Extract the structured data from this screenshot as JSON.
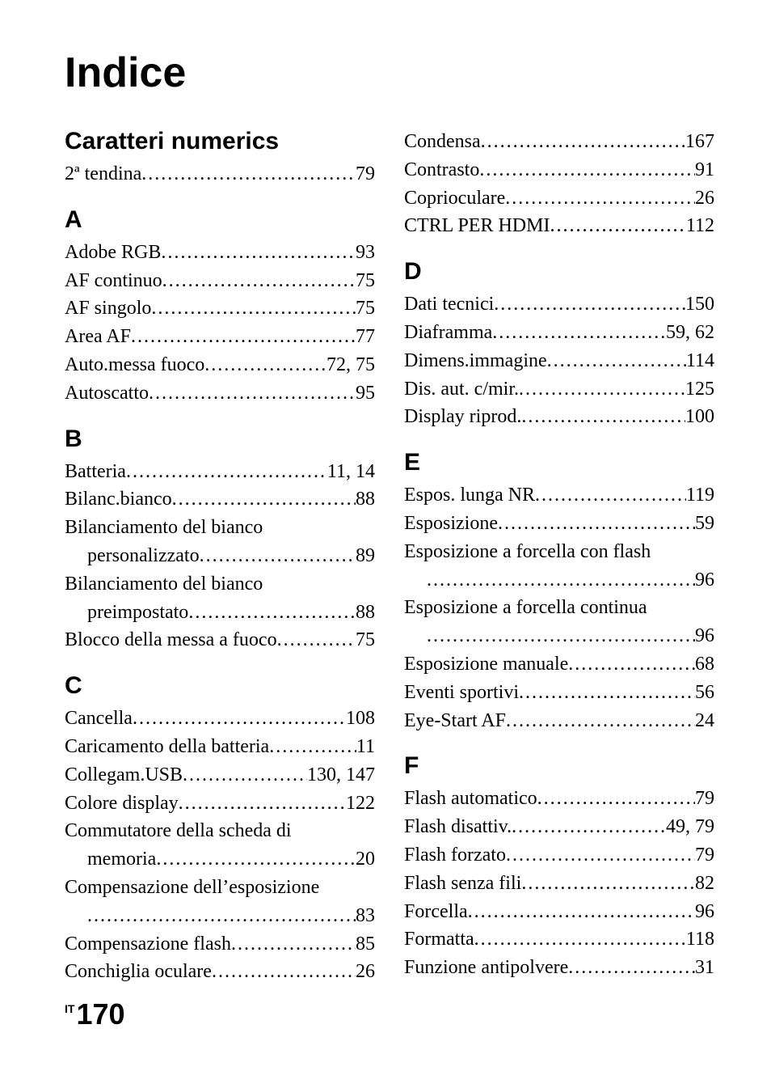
{
  "title": "Indice",
  "footer": {
    "lang": "IT",
    "page": "170"
  },
  "left": [
    {
      "type": "head",
      "text": "Caratteri numerics",
      "first": true
    },
    {
      "type": "entry",
      "label": "2ª tendina",
      "page": "79"
    },
    {
      "type": "head",
      "text": "A"
    },
    {
      "type": "entry",
      "label": "Adobe RGB",
      "page": "93"
    },
    {
      "type": "entry",
      "label": "AF continuo",
      "page": "75"
    },
    {
      "type": "entry",
      "label": "AF singolo",
      "page": "75"
    },
    {
      "type": "entry",
      "label": "Area AF",
      "page": "77"
    },
    {
      "type": "entry",
      "label": "Auto.messa fuoco",
      "page": "72, 75"
    },
    {
      "type": "entry",
      "label": "Autoscatto",
      "page": "95"
    },
    {
      "type": "head",
      "text": "B"
    },
    {
      "type": "entry",
      "label": "Batteria",
      "page": "11, 14"
    },
    {
      "type": "entry",
      "label": "Bilanc.bianco",
      "page": "88"
    },
    {
      "type": "wrap",
      "label": "Bilanciamento del bianco",
      "sub": "personalizzato",
      "page": "89"
    },
    {
      "type": "wrap",
      "label": "Bilanciamento del bianco",
      "sub": "preimpostato",
      "page": "88"
    },
    {
      "type": "entry",
      "label": "Blocco della messa a fuoco",
      "page": "75"
    },
    {
      "type": "head",
      "text": "C"
    },
    {
      "type": "entry",
      "label": "Cancella",
      "page": "108"
    },
    {
      "type": "entry",
      "label": "Caricamento della batteria",
      "page": "11"
    },
    {
      "type": "entry",
      "label": "Collegam.USB",
      "page": "130, 147"
    },
    {
      "type": "entry",
      "label": "Colore display",
      "page": "122"
    },
    {
      "type": "wrap",
      "label": "Commutatore della scheda di",
      "sub": "memoria",
      "page": "20"
    },
    {
      "type": "wrapblank",
      "label": "Compensazione dell’esposizione",
      "page": "83"
    },
    {
      "type": "entry",
      "label": "Compensazione flash",
      "page": "85"
    },
    {
      "type": "entry",
      "label": "Conchiglia oculare",
      "page": "26"
    }
  ],
  "right": [
    {
      "type": "entry",
      "label": "Condensa",
      "page": "167"
    },
    {
      "type": "entry",
      "label": "Contrasto",
      "page": "91"
    },
    {
      "type": "entry",
      "label": "Coprioculare",
      "page": "26"
    },
    {
      "type": "entry",
      "label": "CTRL PER HDMI",
      "page": "112"
    },
    {
      "type": "head",
      "text": "D"
    },
    {
      "type": "entry",
      "label": "Dati tecnici",
      "page": "150"
    },
    {
      "type": "entry",
      "label": "Diaframma",
      "page": "59, 62"
    },
    {
      "type": "entry",
      "label": "Dimens.immagine",
      "page": "114"
    },
    {
      "type": "entry",
      "label": "Dis. aut. c/mir.",
      "page": "125"
    },
    {
      "type": "entry",
      "label": "Display riprod.",
      "page": "100"
    },
    {
      "type": "head",
      "text": "E"
    },
    {
      "type": "entry",
      "label": "Espos. lunga NR",
      "page": "119"
    },
    {
      "type": "entry",
      "label": "Esposizione",
      "page": "59"
    },
    {
      "type": "wrapblank",
      "label": "Esposizione a forcella con flash",
      "page": "96"
    },
    {
      "type": "wrapblank",
      "label": "Esposizione a forcella continua",
      "page": "96"
    },
    {
      "type": "entry",
      "label": "Esposizione manuale",
      "page": "68"
    },
    {
      "type": "entry",
      "label": "Eventi sportivi",
      "page": "56"
    },
    {
      "type": "entry",
      "label": "Eye-Start AF",
      "page": "24"
    },
    {
      "type": "head",
      "text": "F"
    },
    {
      "type": "entry",
      "label": "Flash automatico",
      "page": "79"
    },
    {
      "type": "entry",
      "label": "Flash disattiv.",
      "page": "49, 79"
    },
    {
      "type": "entry",
      "label": "Flash forzato",
      "page": "79"
    },
    {
      "type": "entry",
      "label": "Flash senza fili",
      "page": "82"
    },
    {
      "type": "entry",
      "label": "Forcella",
      "page": "96"
    },
    {
      "type": "entry",
      "label": "Formatta",
      "page": "118"
    },
    {
      "type": "entry",
      "label": "Funzione antipolvere",
      "page": "31"
    }
  ]
}
